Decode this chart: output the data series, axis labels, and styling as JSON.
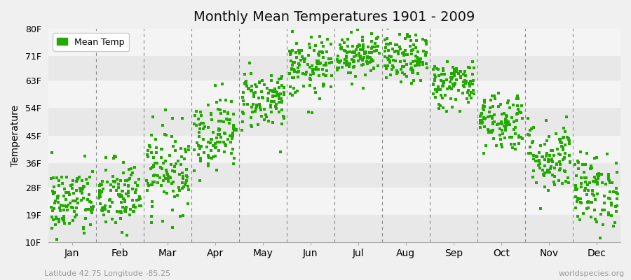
{
  "title": "Monthly Mean Temperatures 1901 - 2009",
  "ylabel": "Temperature",
  "subtitle_left": "Latitude 42.75 Longitude -85.25",
  "subtitle_right": "worldspecies.org",
  "legend_label": "Mean Temp",
  "background_color": "#f0f0f0",
  "plot_bg_color": "#ffffff",
  "band_colors": [
    "#e8e8e8",
    "#f4f4f4"
  ],
  "dot_color": "#22aa00",
  "dot_size": 12,
  "ytick_labels": [
    "10F",
    "19F",
    "28F",
    "36F",
    "45F",
    "54F",
    "63F",
    "71F",
    "80F"
  ],
  "ytick_values": [
    10,
    19,
    28,
    36,
    45,
    54,
    63,
    71,
    80
  ],
  "months": [
    "Jan",
    "Feb",
    "Mar",
    "Apr",
    "May",
    "Jun",
    "Jul",
    "Aug",
    "Sep",
    "Oct",
    "Nov",
    "Dec"
  ],
  "month_centers": [
    0.5,
    1.5,
    2.5,
    3.5,
    4.5,
    5.5,
    6.5,
    7.5,
    8.5,
    9.5,
    10.5,
    11.5
  ],
  "month_dividers": [
    1.0,
    2.0,
    3.0,
    4.0,
    5.0,
    6.0,
    7.0,
    8.0,
    9.0,
    10.0,
    11.0
  ],
  "xlim": [
    0,
    12
  ],
  "ylim": [
    10,
    80
  ],
  "n_years": 109,
  "monthly_mean_F": [
    23,
    25,
    34,
    46,
    57,
    67,
    72,
    70,
    62,
    50,
    38,
    27
  ],
  "monthly_std_F": [
    6,
    6,
    7,
    6,
    5,
    5,
    4,
    4,
    4,
    5,
    6,
    6
  ]
}
